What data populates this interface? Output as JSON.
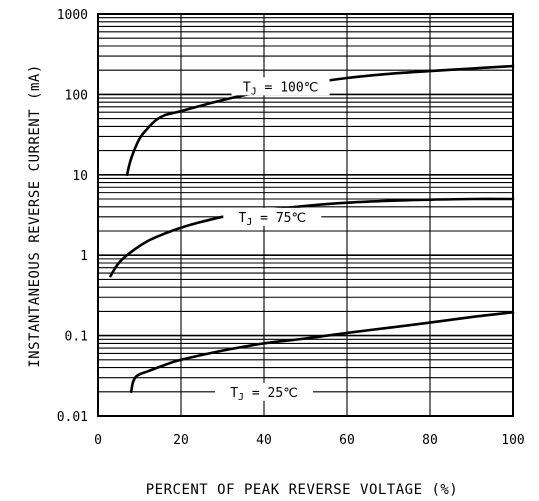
{
  "chart_data": {
    "type": "line",
    "xlabel": "PERCENT OF PEAK REVERSE VOLTAGE (%)",
    "ylabel": "INSTANTANEOUS REVERSE CURRENT (mA)",
    "xlim": [
      0,
      100
    ],
    "ylim": [
      0.01,
      1000
    ],
    "yscale": "log",
    "grid": true,
    "x_ticks": [
      "0",
      "20",
      "40",
      "60",
      "80",
      "100"
    ],
    "y_ticks": [
      "0.01",
      "0.1",
      "1",
      "10",
      "100",
      "1000"
    ],
    "series": [
      {
        "name": "TJ = 100℃",
        "label_main": "T",
        "label_sub": "J",
        "label_rest": " = 100℃",
        "label_at": [
          44,
          126
        ],
        "x": [
          7,
          8,
          10,
          12,
          14,
          16,
          20,
          30,
          40,
          50,
          60,
          70,
          80,
          90,
          100
        ],
        "y": [
          10,
          16,
          28,
          38,
          48,
          55,
          62,
          85,
          110,
          135,
          160,
          180,
          195,
          210,
          225
        ]
      },
      {
        "name": "TJ = 75℃",
        "label_main": "T",
        "label_sub": "J",
        "label_rest": " = 75℃",
        "label_at": [
          42,
          3.0
        ],
        "x": [
          3,
          5,
          8,
          12,
          16,
          20,
          25,
          30,
          35,
          40,
          50,
          60,
          70,
          80,
          90,
          100
        ],
        "y": [
          0.55,
          0.8,
          1.1,
          1.5,
          1.85,
          2.2,
          2.6,
          3.0,
          3.3,
          3.6,
          4.1,
          4.5,
          4.75,
          4.9,
          5.0,
          5.0
        ]
      },
      {
        "name": "TJ = 25℃",
        "label_main": "T",
        "label_sub": "J",
        "label_rest": " = 25℃",
        "label_at": [
          40,
          0.02
        ],
        "x": [
          8,
          8.5,
          9.5,
          12,
          16,
          20,
          30,
          40,
          50,
          60,
          70,
          80,
          90,
          100
        ],
        "y": [
          0.02,
          0.027,
          0.032,
          0.036,
          0.043,
          0.05,
          0.065,
          0.08,
          0.092,
          0.108,
          0.125,
          0.145,
          0.17,
          0.195
        ]
      }
    ]
  }
}
